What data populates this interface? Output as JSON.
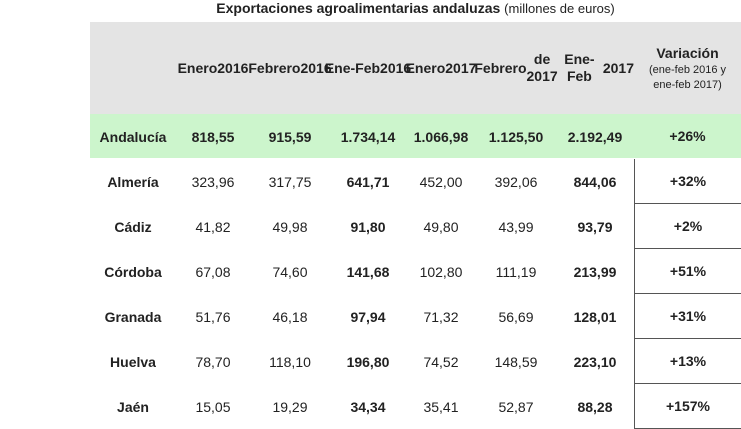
{
  "title": {
    "main": "Exportaciones agroalimentarias andaluzas",
    "units": "(millones de euros)"
  },
  "headers": [
    {
      "lines": [
        "Enero",
        "2016"
      ]
    },
    {
      "lines": [
        "Febrero",
        "2016"
      ]
    },
    {
      "lines": [
        "Ene-",
        "Feb",
        "2016"
      ]
    },
    {
      "lines": [
        "Enero",
        "2017"
      ]
    },
    {
      "lines": [
        "Febrero",
        "de 2017"
      ]
    },
    {
      "lines": [
        "Ene-Feb",
        "2017"
      ]
    }
  ],
  "variation_header": {
    "label": "Variación",
    "note_line1": "(ene-feb 2016 y",
    "note_line2": "ene-feb 2017)"
  },
  "rows": [
    {
      "name": "Andalucía",
      "values": [
        "818,55",
        "915,59",
        "1.734,14",
        "1.066,98",
        "1.125,50",
        "2.192,49"
      ],
      "variation": "+26%"
    },
    {
      "name": "Almería",
      "values": [
        "323,96",
        "317,75",
        "641,71",
        "452,00",
        "392,06",
        "844,06"
      ],
      "variation": "+32%"
    },
    {
      "name": "Cádiz",
      "values": [
        "41,82",
        "49,98",
        "91,80",
        "49,80",
        "43,99",
        "93,79"
      ],
      "variation": "+2%"
    },
    {
      "name": "Córdoba",
      "values": [
        "67,08",
        "74,60",
        "141,68",
        "102,80",
        "111,19",
        "213,99"
      ],
      "variation": "+51%"
    },
    {
      "name": "Granada",
      "values": [
        "51,76",
        "46,18",
        "97,94",
        "71,32",
        "56,69",
        "128,01"
      ],
      "variation": "+31%"
    },
    {
      "name": "Huelva",
      "values": [
        "78,70",
        "118,10",
        "196,80",
        "74,52",
        "148,59",
        "223,10"
      ],
      "variation": "+13%"
    },
    {
      "name": "Jaén",
      "values": [
        "15,05",
        "19,29",
        "34,34",
        "35,41",
        "52,87",
        "88,28"
      ],
      "variation": "+157%"
    }
  ],
  "colors": {
    "header_bg": "#e4e4e4",
    "total_row_bg": "#ccf5cc"
  }
}
